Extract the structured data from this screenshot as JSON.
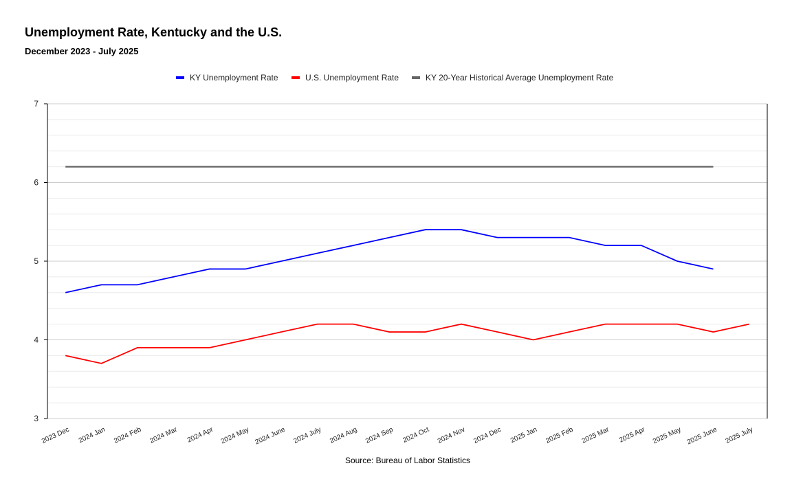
{
  "chart_data": {
    "type": "line",
    "title": "Unemployment Rate, Kentucky and the U.S.",
    "subtitle": "December 2023 - July 2025",
    "source": "Source: Bureau of Labor Statistics",
    "categories": [
      "2023 Dec",
      "2024 Jan",
      "2024 Feb",
      "2024 Mar",
      "2024 Apr",
      "2024 May",
      "2024 June",
      "2024 July",
      "2024 Aug",
      "2024 Sep",
      "2024 Oct",
      "2024 Nov",
      "2024 Dec",
      "2025 Jan",
      "2025 Feb",
      "2025 Mar",
      "2025 Apr",
      "2025 May",
      "2025 June",
      "2025 July"
    ],
    "ylim": [
      3,
      7
    ],
    "yticks": [
      3,
      4,
      5,
      6,
      7
    ],
    "minor_grid_step": 0.2,
    "grid": true,
    "legend_position": "top",
    "series": [
      {
        "name": "KY Unemployment Rate",
        "color": "#0000ff",
        "values": [
          4.6,
          4.7,
          4.7,
          4.8,
          4.9,
          4.9,
          5.0,
          5.1,
          5.2,
          5.3,
          5.4,
          5.4,
          5.3,
          5.3,
          5.3,
          5.2,
          5.2,
          5.0,
          4.9,
          null
        ]
      },
      {
        "name": "U.S. Unemployment Rate",
        "color": "#ff0000",
        "values": [
          3.8,
          3.7,
          3.9,
          3.9,
          3.9,
          4.0,
          4.1,
          4.2,
          4.2,
          4.1,
          4.1,
          4.2,
          4.1,
          4.0,
          4.1,
          4.2,
          4.2,
          4.2,
          4.1,
          4.2
        ]
      },
      {
        "name": "KY 20-Year Historical Average Unemployment Rate",
        "color": "#666666",
        "values": [
          6.2,
          6.2,
          6.2,
          6.2,
          6.2,
          6.2,
          6.2,
          6.2,
          6.2,
          6.2,
          6.2,
          6.2,
          6.2,
          6.2,
          6.2,
          6.2,
          6.2,
          6.2,
          6.2,
          null
        ]
      }
    ]
  }
}
